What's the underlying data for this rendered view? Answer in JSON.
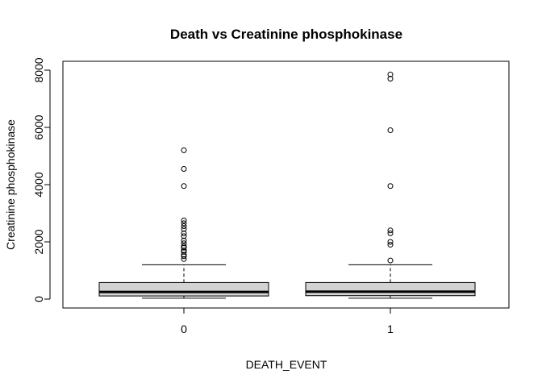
{
  "chart_data": {
    "type": "box",
    "title": "Death vs Creatinine phosphokinase",
    "xlabel": "DEATH_EVENT",
    "ylabel": "Creatinine phosphokinase",
    "categories": [
      "0",
      "1"
    ],
    "yticks": [
      0,
      2000,
      4000,
      6000,
      8000
    ],
    "ylim": [
      -350,
      8200
    ],
    "grid": false,
    "legend": "none",
    "fill_color": "#d3d3d3",
    "boxes": [
      {
        "category": "0",
        "whisker_low": 30,
        "q1": 110,
        "median": 250,
        "q3": 580,
        "whisker_high": 1200,
        "outliers": [
          1400,
          1500,
          1550,
          1650,
          1700,
          1800,
          1850,
          1950,
          2050,
          2200,
          2300,
          2450,
          2550,
          2650,
          2750,
          3950,
          4550,
          5200
        ]
      },
      {
        "category": "1",
        "whisker_low": 30,
        "q1": 120,
        "median": 260,
        "q3": 580,
        "whisker_high": 1200,
        "outliers": [
          1350,
          1900,
          2000,
          2300,
          2400,
          3950,
          5900,
          7700,
          7850
        ]
      }
    ]
  }
}
